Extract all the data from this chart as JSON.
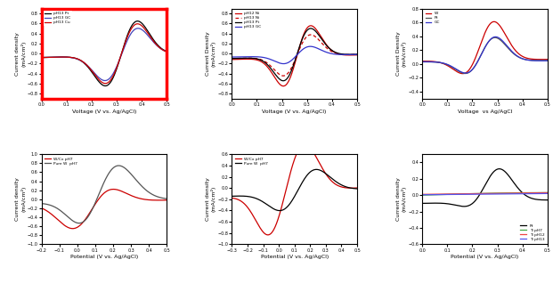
{
  "fig_width": 6.21,
  "fig_height": 3.19,
  "dpi": 100,
  "background": "white",
  "subplots": [
    {
      "xlabel": "Voltage (V vs. Ag/AgCl)",
      "ylabel": "Current density\n(mA/cm²)",
      "xlim": [
        0.0,
        0.5
      ],
      "ylim": [
        -0.9,
        0.9
      ],
      "xticks": [
        0.0,
        0.1,
        0.2,
        0.3,
        0.4,
        0.5
      ],
      "yticks": [
        -0.8,
        -0.6,
        -0.4,
        -0.2,
        0.0,
        0.2,
        0.4,
        0.6,
        0.8
      ],
      "has_red_border": true,
      "legend": [
        "pH13 Pt",
        "pH13 GC",
        "pH13 Cu"
      ],
      "legend_colors": [
        "black",
        "#4444bb",
        "#cc0000"
      ],
      "legend_styles": [
        "-",
        "-",
        "-"
      ],
      "legend_loc": "upper left"
    },
    {
      "xlabel": "Voltage (V vs. Ag/AgCl)",
      "ylabel": "Current Density\n(mA/cm²)",
      "xlim": [
        0.0,
        0.5
      ],
      "ylim": [
        -0.9,
        0.9
      ],
      "xticks": [
        0.0,
        0.1,
        0.2,
        0.3,
        0.4,
        0.5
      ],
      "yticks": [
        -0.8,
        -0.6,
        -0.4,
        -0.2,
        0.0,
        0.2,
        0.4,
        0.6,
        0.8
      ],
      "has_red_border": false,
      "legend": [
        "pH12 Ni",
        "pH13 Ni",
        "pH13 Pt",
        "pH13 GC"
      ],
      "legend_colors": [
        "#cc0000",
        "#cc0000",
        "black",
        "#3333cc"
      ],
      "legend_styles": [
        "-",
        "--",
        "-",
        "-"
      ],
      "legend_loc": "upper left"
    },
    {
      "xlabel": "Voltage  vs Ag/AgCl",
      "ylabel": "Current Density\n(mA/cm²)",
      "xlim": [
        0.0,
        0.5
      ],
      "ylim": [
        -0.5,
        0.8
      ],
      "xticks": [
        0.0,
        0.1,
        0.2,
        0.3,
        0.4,
        0.5
      ],
      "yticks": [
        -0.4,
        -0.2,
        0.0,
        0.2,
        0.4,
        0.6,
        0.8
      ],
      "has_red_border": false,
      "legend": [
        "W",
        "Pt",
        "GC"
      ],
      "legend_colors": [
        "#cc0000",
        "#555555",
        "#3333cc"
      ],
      "legend_styles": [
        "-",
        "-",
        "-"
      ],
      "legend_loc": "upper left"
    },
    {
      "xlabel": "Potential (V vs. Ag/AgCl)",
      "ylabel": "Current density\n(mA/cm²)",
      "xlim": [
        -0.2,
        0.5
      ],
      "ylim": [
        -1.0,
        1.0
      ],
      "xticks": [
        -0.2,
        -0.1,
        0.0,
        0.1,
        0.2,
        0.3,
        0.4,
        0.5
      ],
      "yticks": [
        -1.0,
        -0.8,
        -0.6,
        -0.4,
        -0.2,
        0.0,
        0.2,
        0.4,
        0.6,
        0.8,
        1.0
      ],
      "has_red_border": false,
      "legend": [
        "W/Cx pH7",
        "Pure W  pH7"
      ],
      "legend_colors": [
        "#cc0000",
        "#555555"
      ],
      "legend_styles": [
        "-",
        "-"
      ],
      "legend_loc": "upper left"
    },
    {
      "xlabel": "Potential (V vs. Ag/AgCl)",
      "ylabel": "Current density\n(mA/cm²)",
      "xlim": [
        -0.3,
        0.5
      ],
      "ylim": [
        -1.0,
        0.6
      ],
      "xticks": [
        -0.3,
        -0.2,
        -0.1,
        0.0,
        0.1,
        0.2,
        0.3,
        0.4,
        0.5
      ],
      "yticks": [
        -1.0,
        -0.8,
        -0.6,
        -0.4,
        -0.2,
        0.0,
        0.2,
        0.4,
        0.6
      ],
      "has_red_border": false,
      "legend": [
        "W/Cx pH7",
        "Pure W  pH7"
      ],
      "legend_colors": [
        "#cc0000",
        "black"
      ],
      "legend_styles": [
        "-",
        "-"
      ],
      "legend_loc": "upper left"
    },
    {
      "xlabel": "Potential (V vs. Ag/AgCl)",
      "ylabel": "Current density\n(mA/cm²)",
      "xlim": [
        0.0,
        0.5
      ],
      "ylim": [
        -0.6,
        0.5
      ],
      "xticks": [
        0.0,
        0.1,
        0.2,
        0.3,
        0.4,
        0.5
      ],
      "yticks": [
        -0.6,
        -0.4,
        -0.2,
        0.0,
        0.2,
        0.4
      ],
      "has_red_border": false,
      "legend": [
        "Pt",
        "Ti pH7",
        "Ti pH12",
        "Ti pH13"
      ],
      "legend_colors": [
        "black",
        "#44aa44",
        "#ee4444",
        "#5555ee"
      ],
      "legend_styles": [
        "-",
        "-",
        "-",
        "-"
      ],
      "legend_loc": "lower right"
    }
  ]
}
